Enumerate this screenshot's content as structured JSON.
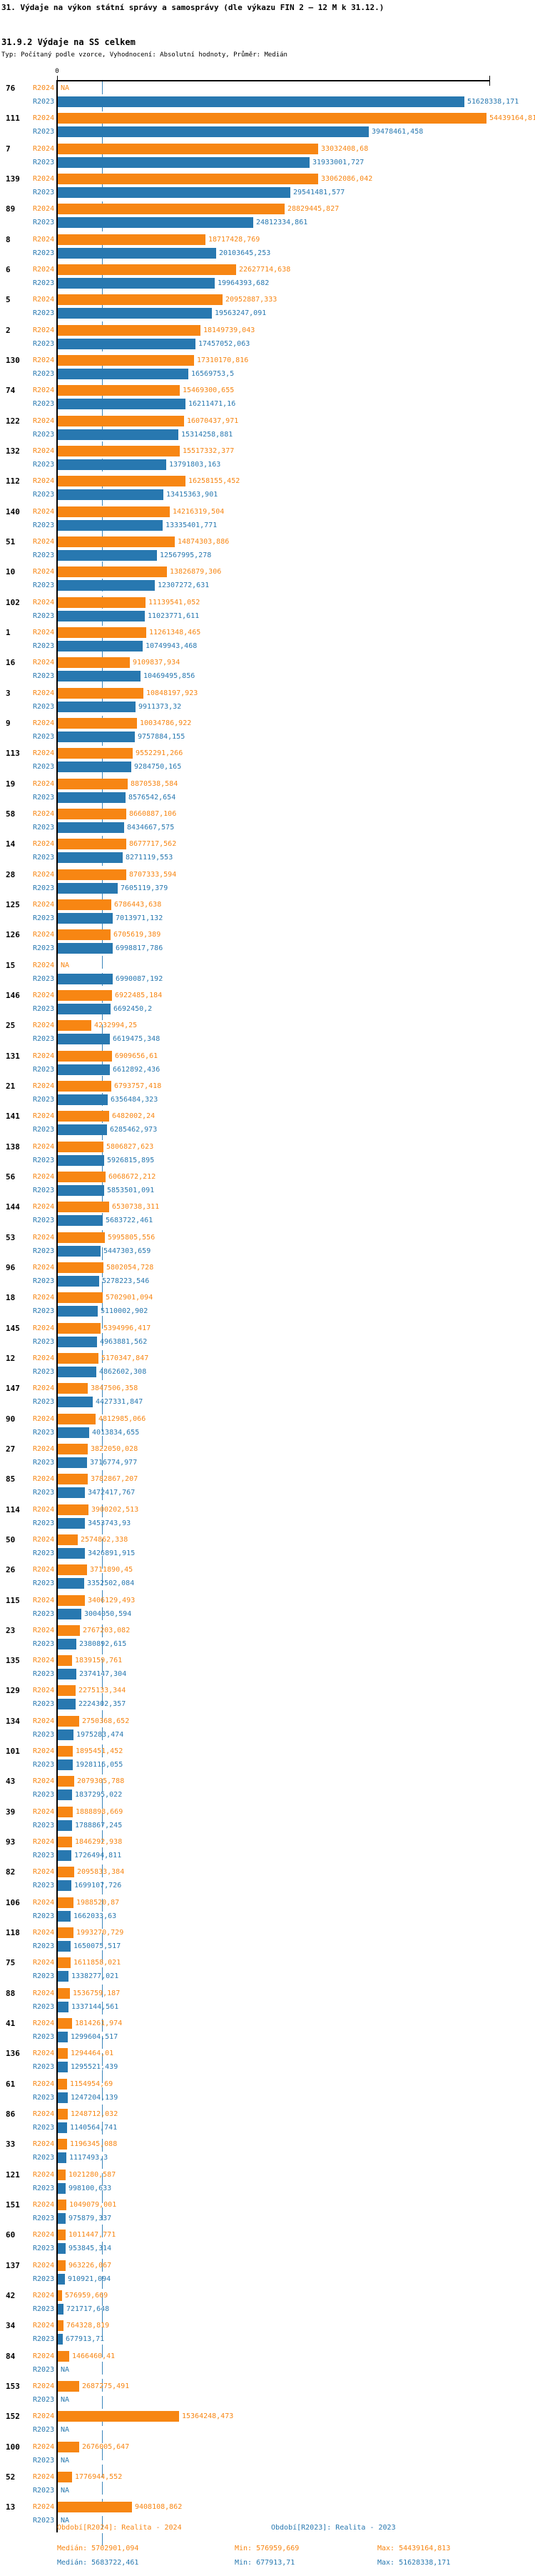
{
  "header": {
    "title": "31. Výdaje na výkon státní správy a samosprávy (dle výkazu FIN 2 – 12 M k 31.12.)",
    "subtitle": "31.9.2 Výdaje na SS celkem",
    "meta": "Typ: Počítaný podle vzorce, Vyhodnocení: Absolutní hodnoty, Průměr: Medián"
  },
  "colors": {
    "r2024": "#f78613",
    "r2023": "#2878b0",
    "median_line": "#3a85bb"
  },
  "chart_data": {
    "type": "bar",
    "orientation": "horizontal",
    "series_labels": [
      "R2024",
      "R2023"
    ],
    "na_label": "NA",
    "axis": {
      "zero_label": "0",
      "xlim_min": 0,
      "xlim_max": 54439164.813,
      "grid": "median-line-only"
    },
    "legend_position": "bottom",
    "groups": [
      {
        "id": "76",
        "R2024": "NA",
        "R2023": "51628338,171"
      },
      {
        "id": "111",
        "R2024": "54439164,813",
        "R2023": "39478461,458"
      },
      {
        "id": "7",
        "R2024": "33032408,68",
        "R2023": "31933001,727"
      },
      {
        "id": "139",
        "R2024": "33062086,042",
        "R2023": "29541481,577"
      },
      {
        "id": "89",
        "R2024": "28829445,827",
        "R2023": "24812334,861"
      },
      {
        "id": "8",
        "R2024": "18717428,769",
        "R2023": "20103645,253"
      },
      {
        "id": "6",
        "R2024": "22627714,638",
        "R2023": "19964393,682"
      },
      {
        "id": "5",
        "R2024": "20952887,333",
        "R2023": "19563247,091"
      },
      {
        "id": "2",
        "R2024": "18149739,043",
        "R2023": "17457052,063"
      },
      {
        "id": "130",
        "R2024": "17310170,816",
        "R2023": "16569753,5"
      },
      {
        "id": "74",
        "R2024": "15469300,655",
        "R2023": "16211471,16"
      },
      {
        "id": "122",
        "R2024": "16070437,971",
        "R2023": "15314258,881"
      },
      {
        "id": "132",
        "R2024": "15517332,377",
        "R2023": "13791803,163"
      },
      {
        "id": "112",
        "R2024": "16258155,452",
        "R2023": "13415363,901"
      },
      {
        "id": "140",
        "R2024": "14216319,504",
        "R2023": "13335401,771"
      },
      {
        "id": "51",
        "R2024": "14874303,886",
        "R2023": "12567995,278"
      },
      {
        "id": "10",
        "R2024": "13826879,306",
        "R2023": "12307272,631"
      },
      {
        "id": "102",
        "R2024": "11139541,052",
        "R2023": "11023771,611"
      },
      {
        "id": "1",
        "R2024": "11261348,465",
        "R2023": "10749943,468"
      },
      {
        "id": "16",
        "R2024": "9109837,934",
        "R2023": "10469495,856"
      },
      {
        "id": "3",
        "R2024": "10848197,923",
        "R2023": "9911373,32"
      },
      {
        "id": "9",
        "R2024": "10034786,922",
        "R2023": "9757884,155"
      },
      {
        "id": "113",
        "R2024": "9552291,266",
        "R2023": "9284750,165"
      },
      {
        "id": "19",
        "R2024": "8870538,584",
        "R2023": "8576542,654"
      },
      {
        "id": "58",
        "R2024": "8660887,106",
        "R2023": "8434667,575"
      },
      {
        "id": "14",
        "R2024": "8677717,562",
        "R2023": "8271119,553"
      },
      {
        "id": "28",
        "R2024": "8707333,594",
        "R2023": "7605119,379"
      },
      {
        "id": "125",
        "R2024": "6786443,638",
        "R2023": "7013971,132"
      },
      {
        "id": "126",
        "R2024": "6705619,389",
        "R2023": "6998817,786"
      },
      {
        "id": "15",
        "R2024": "NA",
        "R2023": "6990087,192"
      },
      {
        "id": "146",
        "R2024": "6922485,184",
        "R2023": "6692450,2"
      },
      {
        "id": "25",
        "R2024": "4232994,25",
        "R2023": "6619475,348"
      },
      {
        "id": "131",
        "R2024": "6909656,61",
        "R2023": "6612892,436"
      },
      {
        "id": "21",
        "R2024": "6793757,418",
        "R2023": "6356484,323"
      },
      {
        "id": "141",
        "R2024": "6482002,24",
        "R2023": "6285462,973"
      },
      {
        "id": "138",
        "R2024": "5806827,623",
        "R2023": "5926815,895"
      },
      {
        "id": "56",
        "R2024": "6068672,212",
        "R2023": "5853501,091"
      },
      {
        "id": "144",
        "R2024": "6530738,311",
        "R2023": "5683722,461"
      },
      {
        "id": "53",
        "R2024": "5995805,556",
        "R2023": "5447303,659"
      },
      {
        "id": "96",
        "R2024": "5802054,728",
        "R2023": "5278223,546"
      },
      {
        "id": "18",
        "R2024": "5702901,094",
        "R2023": "5110002,902"
      },
      {
        "id": "145",
        "R2024": "5394996,417",
        "R2023": "4963881,562"
      },
      {
        "id": "12",
        "R2024": "5170347,847",
        "R2023": "4862602,308"
      },
      {
        "id": "147",
        "R2024": "3847506,358",
        "R2023": "4427331,847"
      },
      {
        "id": "90",
        "R2024": "4812985,066",
        "R2023": "4013834,655"
      },
      {
        "id": "27",
        "R2024": "3822050,028",
        "R2023": "3716774,977"
      },
      {
        "id": "85",
        "R2024": "3782867,207",
        "R2023": "3472417,767"
      },
      {
        "id": "114",
        "R2024": "3900202,513",
        "R2023": "3453743,93"
      },
      {
        "id": "50",
        "R2024": "2574862,338",
        "R2023": "3426891,915"
      },
      {
        "id": "26",
        "R2024": "3711890,45",
        "R2023": "3352502,084"
      },
      {
        "id": "115",
        "R2024": "3406129,493",
        "R2023": "3004050,594"
      },
      {
        "id": "23",
        "R2024": "2767203,082",
        "R2023": "2380892,615"
      },
      {
        "id": "135",
        "R2024": "1839159,761",
        "R2023": "2374147,304"
      },
      {
        "id": "129",
        "R2024": "2275133,344",
        "R2023": "2224302,357"
      },
      {
        "id": "134",
        "R2024": "2750368,652",
        "R2023": "1975283,474"
      },
      {
        "id": "101",
        "R2024": "1895451,452",
        "R2023": "1928116,055"
      },
      {
        "id": "43",
        "R2024": "2079305,788",
        "R2023": "1837295,022"
      },
      {
        "id": "39",
        "R2024": "1888898,669",
        "R2023": "1788867,245"
      },
      {
        "id": "93",
        "R2024": "1846292,938",
        "R2023": "1726494,811"
      },
      {
        "id": "82",
        "R2024": "2095833,384",
        "R2023": "1699107,726"
      },
      {
        "id": "106",
        "R2024": "1988520,87",
        "R2023": "1662033,63"
      },
      {
        "id": "118",
        "R2024": "1993270,729",
        "R2023": "1650075,517"
      },
      {
        "id": "75",
        "R2024": "1611858,021",
        "R2023": "1338277,021"
      },
      {
        "id": "88",
        "R2024": "1536759,187",
        "R2023": "1337144,561"
      },
      {
        "id": "41",
        "R2024": "1814261,974",
        "R2023": "1299604,517"
      },
      {
        "id": "136",
        "R2024": "1294464,01",
        "R2023": "1295521,439"
      },
      {
        "id": "61",
        "R2024": "1154954,69",
        "R2023": "1247204,139"
      },
      {
        "id": "86",
        "R2024": "1248712,032",
        "R2023": "1140564,741"
      },
      {
        "id": "33",
        "R2024": "1196345,088",
        "R2023": "1117493,3"
      },
      {
        "id": "121",
        "R2024": "1021280,587",
        "R2023": "998100,633"
      },
      {
        "id": "151",
        "R2024": "1049079,001",
        "R2023": "975879,337"
      },
      {
        "id": "60",
        "R2024": "1011447,771",
        "R2023": "953845,314"
      },
      {
        "id": "137",
        "R2024": "963226,067",
        "R2023": "910921,094"
      },
      {
        "id": "42",
        "R2024": "576959,669",
        "R2023": "721717,648"
      },
      {
        "id": "34",
        "R2024": "764328,819",
        "R2023": "677913,71"
      },
      {
        "id": "84",
        "R2024": "1466460,41",
        "R2023": "NA"
      },
      {
        "id": "153",
        "R2024": "2687275,491",
        "R2023": "NA"
      },
      {
        "id": "152",
        "R2024": "15364248,473",
        "R2023": "NA"
      },
      {
        "id": "100",
        "R2024": "2676005,647",
        "R2023": "NA"
      },
      {
        "id": "52",
        "R2024": "1776944,552",
        "R2023": "NA"
      },
      {
        "id": "13",
        "R2024": "9408108,862",
        "R2023": "NA"
      }
    ]
  },
  "footer": {
    "period_r2024": "Období[R2024]: Realita - 2024",
    "period_r2023": "Období[R2023]: Realita - 2023",
    "r2024_median": "Medián: 5702901,094",
    "r2024_min": "Min: 576959,669",
    "r2024_max": "Max: 54439164,813",
    "r2023_median": "Medián: 5683722,461",
    "r2023_min": "Min: 677913,71",
    "r2023_max": "Max: 51628338,171"
  }
}
